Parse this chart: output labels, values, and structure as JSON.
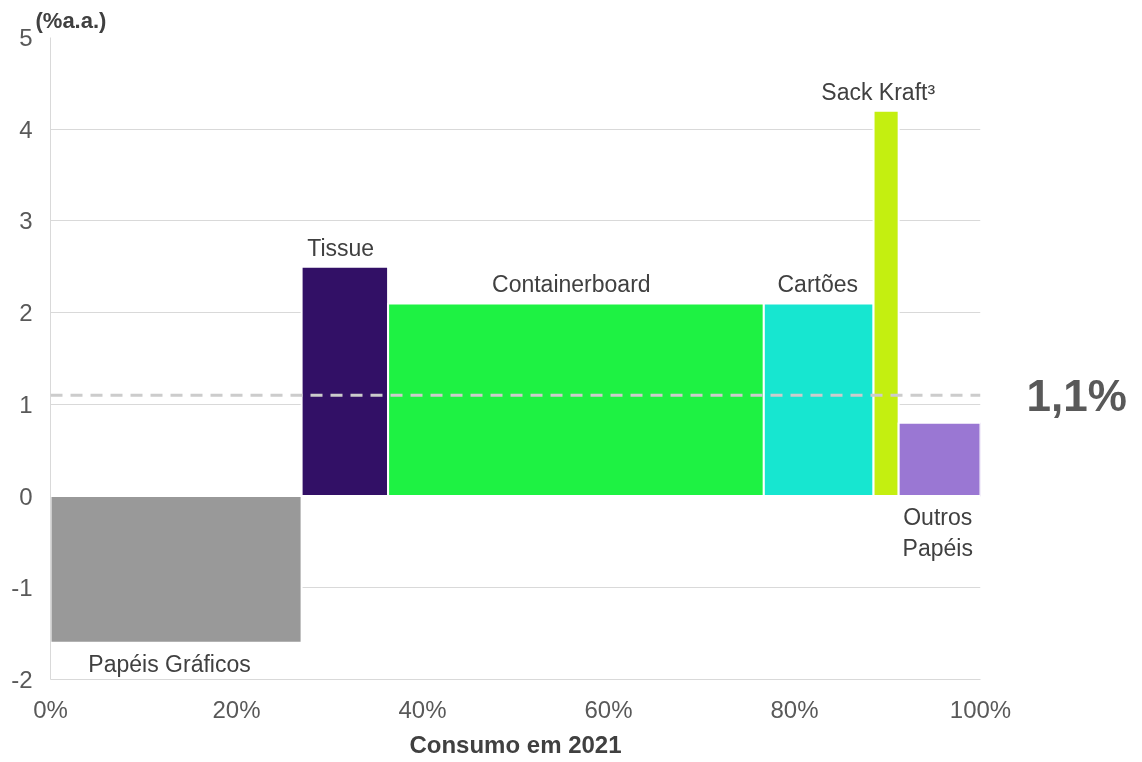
{
  "chart_data": {
    "type": "histogram",
    "xlabel": "Consumo em 2021",
    "ylabel": "(%a.a.)",
    "bins": [
      0,
      27,
      36.3,
      76.7,
      88.5,
      91.2,
      100
    ],
    "values": [
      -1.6,
      2.5,
      2.1,
      2.1,
      4.2,
      0.8
    ],
    "colors": [
      "#999999",
      "#321066",
      "#1ef243",
      "#17e6d0",
      "#c4ef10",
      "#9a77d3"
    ],
    "xlim": [
      0,
      100
    ],
    "xticks": [
      {
        "value": 0,
        "label": "0%"
      },
      {
        "value": 20,
        "label": "20%"
      },
      {
        "value": 40,
        "label": "40%"
      },
      {
        "value": 60,
        "label": "60%"
      },
      {
        "value": 80,
        "label": "80%"
      },
      {
        "value": 100,
        "label": "100%"
      }
    ],
    "ylim": [
      -2,
      5
    ],
    "yticks": [
      -2,
      -1,
      0,
      1,
      2,
      3,
      4,
      5
    ],
    "grid": "y",
    "ref_lines": [
      {
        "axis": "y",
        "value": 1.1,
        "label": "1,1%",
        "color": "#cccccc",
        "line_style": "dashed"
      }
    ],
    "annotations": [
      {
        "text": "Papéis Gráficos",
        "x": 12.8,
        "y": -1.6
      },
      {
        "text": "Tissue",
        "x": 31.2,
        "y": 2.5
      },
      {
        "text": "Containerboard",
        "x": 56,
        "y": 2.1
      },
      {
        "text": "Cartões",
        "x": 82.5,
        "y": 2.1
      },
      {
        "text": "Sack Kraft³",
        "x": 89,
        "y": 4.2
      },
      {
        "text": "Outros\nPapéis",
        "x": 95.4,
        "y": 0
      }
    ]
  }
}
